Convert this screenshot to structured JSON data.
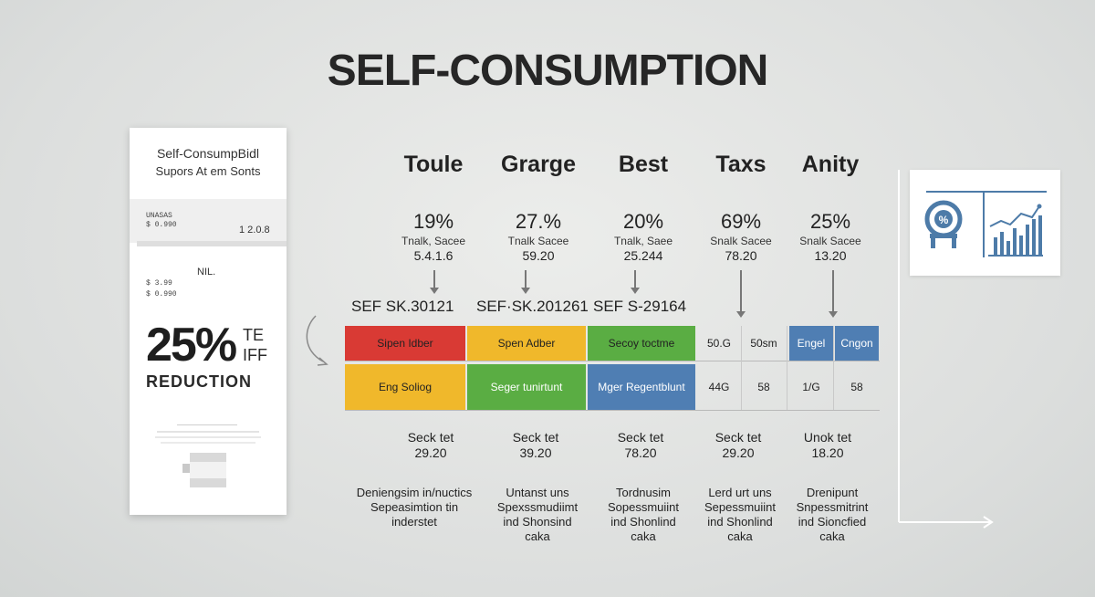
{
  "title": "SELF-CONSUMPTION",
  "card": {
    "line1": "Self-ConsumpBidl",
    "line2": "Supors At em Sonts",
    "tiny1": "UNASAS",
    "tiny2": "$ 0.990",
    "value1": "1 2.0.8",
    "label_nil": "NIL.",
    "tiny3": "$ 3.99",
    "tiny4": "$ 0.990",
    "big_pct": "25%",
    "te1": "TE",
    "te2": "IFF",
    "reduction": "REDUCTION"
  },
  "columns": [
    {
      "head": "Toule",
      "pct": "19%",
      "sub1": "Tnalk, Sacee",
      "sub2": "5.4.1.6",
      "sef": "SEF SK.30121",
      "bot1": "Seck tet",
      "bot2": "29.20",
      "desc": [
        "Deniengsim in/nuctics",
        "Sepeasimtion tin",
        "inderstet"
      ]
    },
    {
      "head": "Grarge",
      "pct": "27.%",
      "sub1": "Tnalk  Sacee",
      "sub2": "59.20",
      "sef": "SEF·SK.201261",
      "bot1": "Seck tet",
      "bot2": "39.20",
      "desc": [
        "Untanst uns",
        "Spexssmudiimt",
        "ind Shonsind",
        "caka"
      ]
    },
    {
      "head": "Best",
      "pct": "20%",
      "sub1": "Tnalk, Saee",
      "sub2": "25.244",
      "sef": "SEF S-29164",
      "bot1": "Seck tet",
      "bot2": "78.20",
      "desc": [
        "Tordnusim",
        "Sopessmuiint",
        "ind Shonlind",
        "caka"
      ]
    },
    {
      "head": "Taxs",
      "pct": "69%",
      "sub1": "Snalk  Sacee",
      "sub2": "78.20",
      "sef": "",
      "bot1": "Seck tet",
      "bot2": "29.20",
      "desc": [
        "Lerd urt uns",
        "Sepessmuiint",
        "ind Shonlind",
        "caka"
      ]
    },
    {
      "head": "Anity",
      "pct": "25%",
      "sub1": "Snalk  Sacee",
      "sub2": "13.20",
      "sef": "",
      "bot1": "Unok tet",
      "bot2": "18.20",
      "desc": [
        "Drenipunt",
        "Snpessmitrint",
        "ind Sioncfied",
        "caka"
      ]
    }
  ],
  "grid": {
    "row1": [
      "Sipen Idber",
      "Spen Adber",
      "Secoy toctme",
      "50.G",
      "50sm",
      "Engel",
      "Cngon"
    ],
    "row2": [
      "Eng Soliog",
      "Seger tunirtunt",
      "Mger Regentblunt",
      "44G",
      "58",
      "1/G",
      "58"
    ]
  },
  "colors": {
    "red": "#d93a34",
    "yellow": "#f0b82b",
    "green": "#5aad43",
    "blue": "#4f7eb3",
    "icon_blue": "#4d7ba8"
  },
  "icons": [
    "percent-gauge-icon",
    "bar-chart-icon"
  ]
}
